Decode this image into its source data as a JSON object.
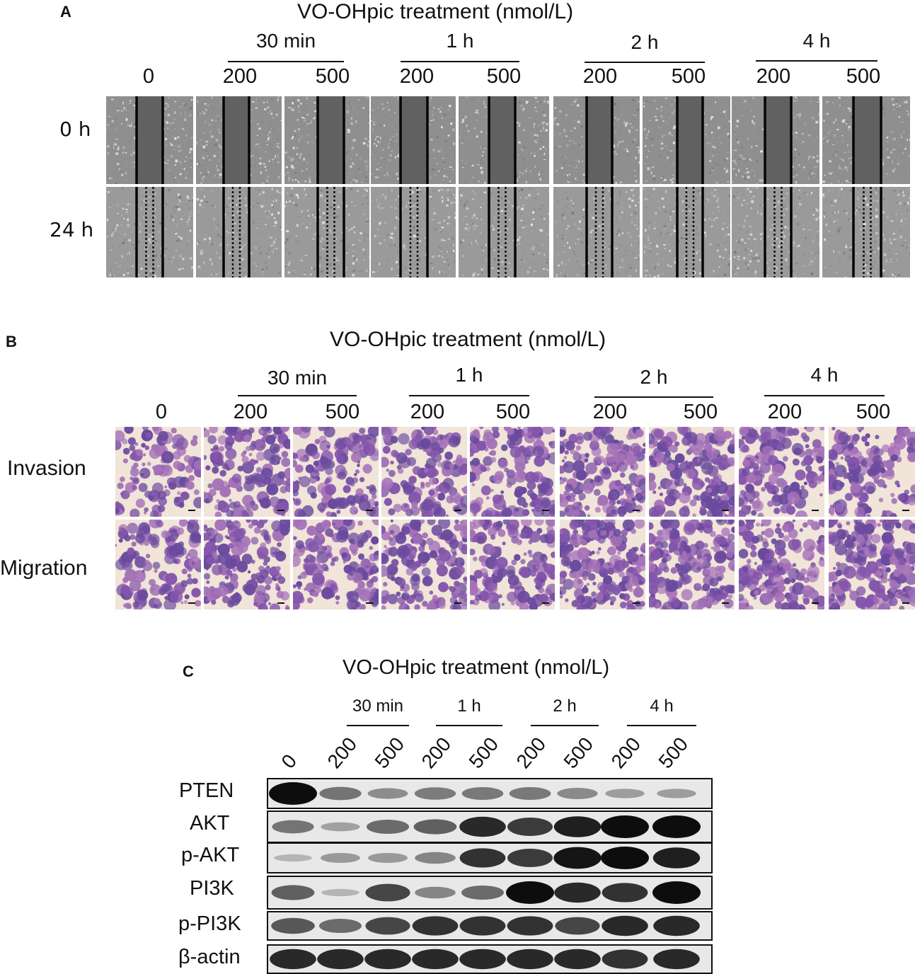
{
  "panel_a": {
    "letter": "A",
    "title": "VO-OHpic treatment (nmol/L)",
    "time_groups": [
      "30 min",
      "1 h",
      "2 h",
      "4 h"
    ],
    "doses": [
      "0",
      "200",
      "500",
      "200",
      "500",
      "200",
      "500",
      "200",
      "500"
    ],
    "row_labels": [
      "0 h",
      "24 h"
    ]
  },
  "panel_b": {
    "letter": "B",
    "title": "VO-OHpic treatment (nmol/L)",
    "time_groups": [
      "30 min",
      "1 h",
      "2 h",
      "4 h"
    ],
    "doses": [
      "0",
      "200",
      "500",
      "200",
      "500",
      "200",
      "500",
      "200",
      "500"
    ],
    "row_labels": [
      "Invasion",
      "Migration"
    ]
  },
  "panel_c": {
    "letter": "C",
    "title": "VO-OHpic treatment (nmol/L)",
    "time_groups": [
      "30 min",
      "1 h",
      "2 h",
      "4 h"
    ],
    "lanes": [
      "0",
      "200",
      "500",
      "200",
      "500",
      "200",
      "500",
      "200",
      "500"
    ],
    "proteins": [
      {
        "label": "PTEN",
        "intensity": [
          1.0,
          0.45,
          0.3,
          0.4,
          0.42,
          0.42,
          0.33,
          0.22,
          0.22
        ]
      },
      {
        "label": "AKT",
        "intensity": [
          0.45,
          0.2,
          0.5,
          0.55,
          0.85,
          0.75,
          0.9,
          1.0,
          1.0
        ]
      },
      {
        "label": "p-AKT",
        "intensity": [
          0.1,
          0.25,
          0.25,
          0.35,
          0.8,
          0.75,
          0.95,
          1.0,
          0.9
        ]
      },
      {
        "label": "PI3K",
        "intensity": [
          0.55,
          0.1,
          0.7,
          0.35,
          0.5,
          1.0,
          0.85,
          0.8,
          1.0
        ]
      },
      {
        "label": "p-PI3K",
        "intensity": [
          0.6,
          0.5,
          0.7,
          0.8,
          0.8,
          0.8,
          0.7,
          0.85,
          0.85
        ]
      },
      {
        "label": "β-actin",
        "intensity": [
          0.85,
          0.85,
          0.85,
          0.85,
          0.85,
          0.85,
          0.85,
          0.8,
          0.85
        ]
      }
    ]
  }
}
